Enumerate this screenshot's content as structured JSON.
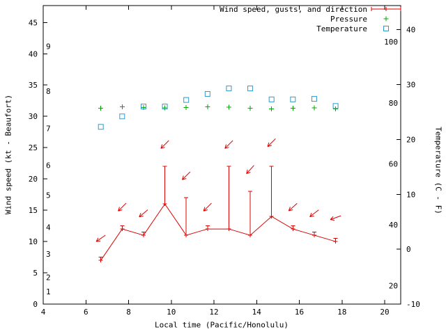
{
  "chart_data": {
    "type": "line",
    "title": "",
    "xlabel": "Local time (Pacific/Honolulu)",
    "ylabel": "Wind speed (kt - Beaufort)",
    "y2label": "Temperature (C - F)",
    "x_range": [
      4,
      20.75
    ],
    "x_ticks": [
      4,
      6,
      8,
      10,
      12,
      14,
      16,
      18,
      20
    ],
    "y1_range": [
      0,
      47.7
    ],
    "y1_ticks": [
      0,
      5,
      10,
      15,
      20,
      25,
      30,
      35,
      40,
      45
    ],
    "beaufort_ticks": [
      {
        "label": "1",
        "kt": 2.0
      },
      {
        "label": "2",
        "kt": 4.3
      },
      {
        "label": "3",
        "kt": 8.0
      },
      {
        "label": "4",
        "kt": 12.3
      },
      {
        "label": "5",
        "kt": 17.4
      },
      {
        "label": "6",
        "kt": 22.2
      },
      {
        "label": "7",
        "kt": 28.1
      },
      {
        "label": "8",
        "kt": 34.0
      },
      {
        "label": "9",
        "kt": 41.2
      }
    ],
    "y2_range_c": [
      -10,
      44.4
    ],
    "c_ticks": [
      -10,
      0,
      10,
      20,
      30,
      40
    ],
    "f_ticks": [
      20,
      40,
      60,
      80,
      100
    ],
    "grid": false,
    "legend_position": "top-right-inside",
    "colors": {
      "wind": "#dd0000",
      "pressure": "#00a800",
      "temperature": "#3399cc",
      "axis": "#000000"
    },
    "series": [
      {
        "name": "Wind speed, gusts, and direction",
        "type": "yerrorbar-line",
        "color_key": "wind",
        "x": [
          6.7,
          7.7,
          8.7,
          9.7,
          10.7,
          11.7,
          12.7,
          13.7,
          14.7,
          15.7,
          16.7,
          17.7
        ],
        "speed": [
          7,
          12,
          11,
          16,
          11,
          12,
          12,
          11,
          14,
          12,
          11,
          10
        ],
        "gust": [
          7.5,
          12.5,
          11.5,
          22,
          17,
          12.5,
          22,
          18,
          22,
          12.5,
          11.5,
          10.5
        ],
        "direction_arrows": {
          "y": [
            10.5,
            15.5,
            14.5,
            25.5,
            20.5,
            15.5,
            25.5,
            21.5,
            25.8,
            15.5,
            14.5,
            13.8
          ],
          "angle_deg": [
            235,
            225,
            230,
            225,
            225,
            225,
            225,
            222,
            225,
            228,
            232,
            250
          ]
        }
      },
      {
        "name": "Pressure",
        "type": "points",
        "marker": "plus",
        "color_key": "pressure",
        "axis": "y1",
        "x": [
          6.7,
          7.7,
          8.7,
          9.7,
          10.7,
          11.7,
          12.7,
          13.7,
          14.7,
          15.7,
          16.7,
          17.7
        ],
        "y": [
          31.3,
          31.5,
          31.4,
          31.35,
          31.4,
          31.5,
          31.45,
          31.3,
          31.2,
          31.3,
          31.35,
          31.2
        ]
      },
      {
        "name": "Temperature",
        "type": "points",
        "marker": "open-square",
        "color_key": "temperature",
        "axis": "y2",
        "x": [
          6.7,
          7.7,
          8.7,
          9.7,
          10.7,
          11.7,
          12.7,
          13.7,
          14.7,
          15.7,
          16.7,
          17.7
        ],
        "y": [
          22.3,
          24.2,
          26.0,
          26.0,
          27.2,
          28.3,
          29.3,
          29.3,
          27.3,
          27.3,
          27.4,
          26.1
        ]
      }
    ]
  }
}
